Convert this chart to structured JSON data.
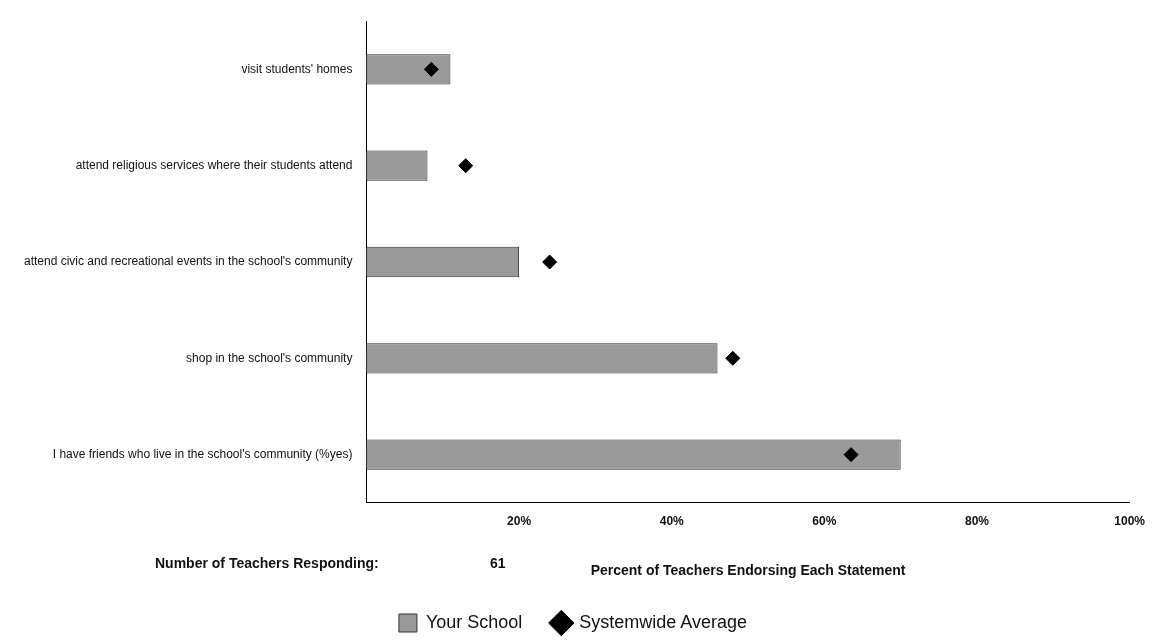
{
  "chart_data": {
    "type": "bar",
    "orientation": "horizontal",
    "xlabel": "Percent of Teachers Endorsing Each Statement",
    "categories": [
      "visit students' homes",
      "attend religious services where their students attend",
      "attend civic and recreational events in the school's community",
      "shop in the school's community",
      "I have friends who live in the school's community (%yes)"
    ],
    "series": [
      {
        "name": "Your School",
        "color": "#9a9a9a",
        "values": [
          11,
          8,
          20,
          46,
          70
        ]
      },
      {
        "name": "Systemwide Average",
        "type": "scatter",
        "color": "#000000",
        "marker": "diamond",
        "values": [
          8.5,
          13,
          24,
          48,
          63.5
        ]
      }
    ],
    "xlim": [
      0,
      100
    ],
    "xticks": [
      {
        "value": 20,
        "label": "20%"
      },
      {
        "value": 40,
        "label": "40%"
      },
      {
        "value": 60,
        "label": "60%"
      },
      {
        "value": 80,
        "label": "80%"
      },
      {
        "value": 100,
        "label": "100%"
      }
    ],
    "grid": false,
    "legend": "bottom",
    "annotations": [
      "Number of Teachers Responding:",
      "61"
    ]
  }
}
